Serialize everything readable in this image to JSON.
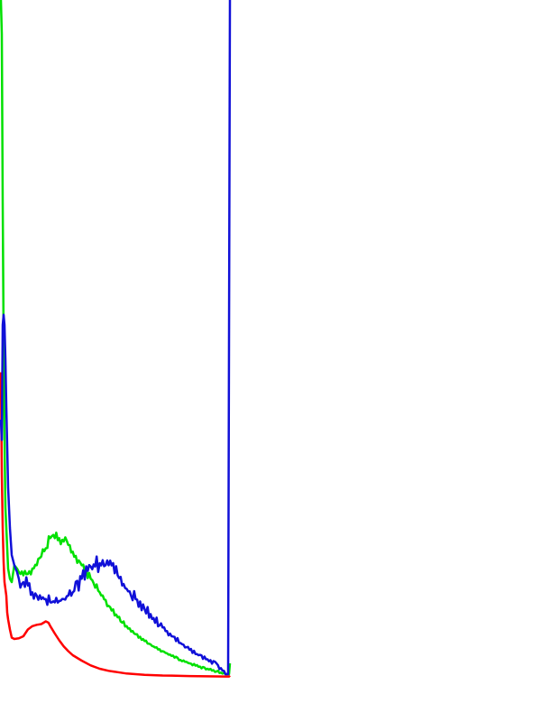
{
  "chart_data": {
    "type": "line",
    "title": "",
    "xlabel": "",
    "ylabel": "",
    "xlim": [
      0,
      255
    ],
    "ylim": [
      0,
      1
    ],
    "grid": false,
    "legend": "none",
    "series": [
      {
        "color": "#ff0000",
        "x": [
          0,
          1,
          2,
          3,
          4,
          5,
          6,
          7,
          8,
          10,
          12,
          15,
          20,
          25,
          30,
          35,
          40,
          45,
          50,
          53,
          55,
          60,
          65,
          70,
          75,
          80,
          90,
          100,
          110,
          120,
          130,
          140,
          150,
          160,
          170,
          180,
          190,
          200,
          210,
          220,
          230,
          240,
          250,
          253,
          254,
          255
        ],
        "values": [
          0.45,
          0.3,
          0.22,
          0.17,
          0.14,
          0.13,
          0.12,
          0.095,
          0.085,
          0.07,
          0.058,
          0.056,
          0.057,
          0.06,
          0.07,
          0.075,
          0.077,
          0.078,
          0.082,
          0.08,
          0.075,
          0.064,
          0.054,
          0.045,
          0.038,
          0.032,
          0.024,
          0.017,
          0.012,
          0.009,
          0.007,
          0.005,
          0.004,
          0.003,
          0.0025,
          0.002,
          0.0018,
          0.0015,
          0.0012,
          0.001,
          0.0008,
          0.0006,
          0.0005,
          0.0005,
          0.0005,
          0.002
        ]
      },
      {
        "color": "#00e000",
        "x": [
          0,
          1,
          2,
          3,
          4,
          5,
          6,
          7,
          8,
          10,
          12,
          15,
          18,
          20,
          25,
          30,
          35,
          40,
          45,
          50,
          55,
          60,
          65,
          70,
          75,
          80,
          90,
          100,
          110,
          120,
          130,
          140,
          150,
          160,
          170,
          180,
          190,
          200,
          210,
          220,
          230,
          240,
          250,
          253,
          254,
          255
        ],
        "values": [
          1.0,
          0.95,
          0.7,
          0.5,
          0.35,
          0.25,
          0.22,
          0.19,
          0.16,
          0.145,
          0.14,
          0.165,
          0.16,
          0.155,
          0.15,
          0.152,
          0.16,
          0.165,
          0.178,
          0.19,
          0.205,
          0.205,
          0.205,
          0.2,
          0.195,
          0.185,
          0.165,
          0.145,
          0.125,
          0.105,
          0.088,
          0.075,
          0.063,
          0.053,
          0.045,
          0.038,
          0.031,
          0.025,
          0.02,
          0.015,
          0.012,
          0.008,
          0.004,
          0.004,
          0.004,
          0.02
        ]
      },
      {
        "color": "#1010d8",
        "x": [
          0,
          1,
          2,
          3,
          4,
          5,
          6,
          7,
          8,
          10,
          12,
          15,
          18,
          20,
          25,
          30,
          35,
          40,
          45,
          50,
          55,
          60,
          65,
          70,
          75,
          80,
          90,
          100,
          110,
          120,
          125,
          130,
          140,
          150,
          160,
          170,
          180,
          190,
          200,
          210,
          220,
          230,
          240,
          250,
          253,
          254,
          255
        ],
        "values": [
          0.38,
          0.35,
          0.52,
          0.535,
          0.52,
          0.47,
          0.4,
          0.34,
          0.28,
          0.22,
          0.18,
          0.165,
          0.155,
          0.145,
          0.14,
          0.135,
          0.125,
          0.12,
          0.115,
          0.115,
          0.11,
          0.11,
          0.112,
          0.115,
          0.12,
          0.125,
          0.145,
          0.163,
          0.168,
          0.165,
          0.168,
          0.15,
          0.13,
          0.115,
          0.1,
          0.087,
          0.073,
          0.06,
          0.05,
          0.04,
          0.032,
          0.026,
          0.02,
          0.004,
          0.004,
          0.5,
          1.0
        ]
      }
    ]
  }
}
